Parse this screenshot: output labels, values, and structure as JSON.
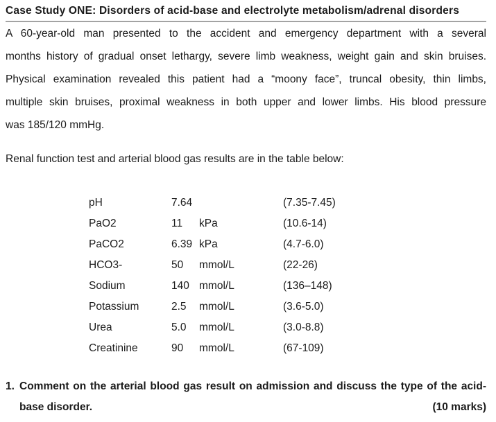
{
  "page": {
    "title": "Case Study ONE: Disorders of acid-base and electrolyte metabolism/adrenal disorders"
  },
  "case_description": {
    "lines": [
      "A 60-year-old man presented to the accident and emergency department with a several",
      "months history of gradual onset lethargy, severe limb weakness, weight gain and skin bruises.",
      "Physical examination revealed this patient had a “moony face”, truncal obesity, thin limbs,",
      "multiple skin bruises, proximal weakness in both upper and lower limbs. His blood pressure",
      "was 185/120 mmHg."
    ]
  },
  "results_intro": "Renal function test and arterial blood gas results are in the table below:",
  "results": {
    "rows": [
      {
        "name": "pH",
        "value": "7.64",
        "unit": "",
        "range": "(7.35-7.45)"
      },
      {
        "name": "PaO2",
        "value": "11",
        "unit": "kPa",
        "range": "(10.6-14)"
      },
      {
        "name": "PaCO2",
        "value": "6.39",
        "unit": "kPa",
        "range": "(4.7-6.0)"
      },
      {
        "name": "HCO3-",
        "value": "50",
        "unit": "mmol/L",
        "range": "(22-26)"
      },
      {
        "name": "Sodium",
        "value": "140",
        "unit": "mmol/L",
        "range": "(136–148)"
      },
      {
        "name": "Potassium",
        "value": "2.5",
        "unit": "mmol/L",
        "range": "(3.6-5.0)"
      },
      {
        "name": "Urea",
        "value": "5.0",
        "unit": "mmol/L",
        "range": "(3.0-8.8)"
      },
      {
        "name": "Creatinine",
        "value": "90",
        "unit": "mmol/L",
        "range": "(67-109)"
      }
    ]
  },
  "question": {
    "number": "1.",
    "line1": "Comment on the arterial blood gas result on admission and discuss the type of the acid-",
    "line2": "base disorder.",
    "marks": "(10 marks)"
  }
}
